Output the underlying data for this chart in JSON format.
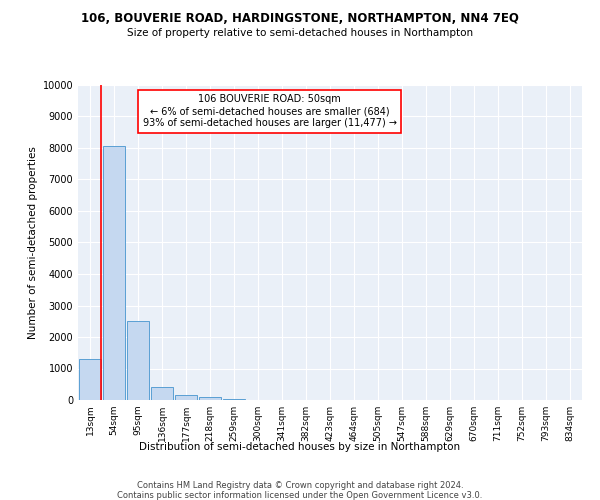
{
  "title1": "106, BOUVERIE ROAD, HARDINGSTONE, NORTHAMPTON, NN4 7EQ",
  "title2": "Size of property relative to semi-detached houses in Northampton",
  "xlabel": "Distribution of semi-detached houses by size in Northampton",
  "ylabel": "Number of semi-detached properties",
  "footer1": "Contains HM Land Registry data © Crown copyright and database right 2024.",
  "footer2": "Contains public sector information licensed under the Open Government Licence v3.0.",
  "categories": [
    "13sqm",
    "54sqm",
    "95sqm",
    "136sqm",
    "177sqm",
    "218sqm",
    "259sqm",
    "300sqm",
    "341sqm",
    "382sqm",
    "423sqm",
    "464sqm",
    "505sqm",
    "547sqm",
    "588sqm",
    "629sqm",
    "670sqm",
    "711sqm",
    "752sqm",
    "793sqm",
    "834sqm"
  ],
  "values": [
    1300,
    8050,
    2500,
    400,
    150,
    100,
    20,
    10,
    5,
    3,
    2,
    1,
    1,
    0,
    0,
    0,
    0,
    0,
    0,
    0,
    0
  ],
  "bar_color": "#c5d8f0",
  "bar_edge_color": "#5a9fd4",
  "red_line_x": 0.47,
  "annotation_text_line1": "106 BOUVERIE ROAD: 50sqm",
  "annotation_text_line2": "← 6% of semi-detached houses are smaller (684)",
  "annotation_text_line3": "93% of semi-detached houses are larger (11,477) →",
  "ylim": [
    0,
    10000
  ],
  "bg_color": "#eaf0f8",
  "grid_color": "white"
}
